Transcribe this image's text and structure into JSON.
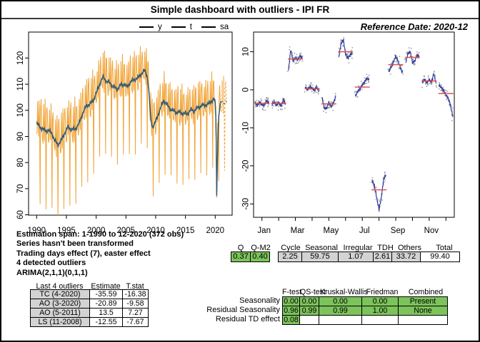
{
  "title": "Simple dashboard with outliers - IPI FR",
  "header": {
    "reference_date": "Reference Date: 2020-12",
    "legend": [
      {
        "label": "y"
      },
      {
        "label": "t"
      },
      {
        "label": "sa"
      }
    ]
  },
  "diagnostics_text": [
    "Estimation span: 1-1990 to 12-2020 (372 obs)",
    "Series hasn't been transformed",
    "Trading days effect (7), easter effect",
    "4 detected outliers",
    "ARIMA(2,1,1)(0,1,1)"
  ],
  "outliers_table": {
    "headers": [
      "Last 4 outliers",
      "Estimate",
      "T.stat"
    ],
    "rows": [
      [
        "TC (4-2020)",
        "-35.59",
        "-16.38"
      ],
      [
        "AO (3-2020)",
        "-20.89",
        "-9.58"
      ],
      [
        "AO (5-2011)",
        "13.5",
        "7.27"
      ],
      [
        "LS (11-2008)",
        "-12.55",
        "-7.67"
      ]
    ]
  },
  "q_stats": {
    "groups": [
      {
        "label": "Q",
        "value": "0.37",
        "bg": "green"
      },
      {
        "label": "Q-M2",
        "value": "0.40",
        "bg": "green"
      },
      {
        "label": "",
        "value": "",
        "bg": "gap"
      },
      {
        "label": "Cycle",
        "value": "2.25",
        "bg": "gray"
      },
      {
        "label": "Seasonal",
        "value": "59.75",
        "bg": "gray"
      },
      {
        "label": "Irregular",
        "value": "1.07",
        "bg": "gray"
      },
      {
        "label": "TDH",
        "value": "2.61",
        "bg": "gray"
      },
      {
        "label": "Others",
        "value": "33.72",
        "bg": "gray"
      },
      {
        "label": "Total",
        "value": "99.40",
        "bg": "white"
      }
    ]
  },
  "seasonality_tests": {
    "column_headers": [
      "F-test",
      "QS-test",
      "Kruskal-Wallis",
      "Friedman",
      "Combined"
    ],
    "rows": [
      {
        "label": "Seasonality",
        "cells": [
          "0.00",
          "0.00",
          "0.00",
          "0.00",
          "Present"
        ],
        "green_flags": [
          true,
          true,
          true,
          true,
          true
        ]
      },
      {
        "label": "Residual Seasonality",
        "cells": [
          "0.96",
          "0.99",
          "0.99",
          "1.00",
          "None"
        ],
        "green_flags": [
          true,
          true,
          true,
          true,
          true
        ]
      },
      {
        "label": "Residual TD effect",
        "cells": [
          "0.08",
          "",
          "",
          "",
          ""
        ],
        "green_flags": [
          true,
          false,
          false,
          false,
          false
        ]
      }
    ]
  },
  "chart_data": [
    {
      "type": "line",
      "title": "",
      "xlabel": "",
      "ylabel": "",
      "x_ticks": [
        1990,
        1995,
        2000,
        2005,
        2010,
        2015,
        2020
      ],
      "y_ticks": [
        60,
        70,
        80,
        90,
        100,
        110,
        120
      ],
      "xlim": [
        1988.6,
        2022.8
      ],
      "ylim": [
        59.9,
        130
      ],
      "legend_position": "top",
      "grid": false,
      "series_names": [
        "y",
        "t",
        "sa"
      ],
      "observations": "monthly, 1-1990 to 12-2020, 372 obs; y = raw series, t = trend, sa = seasonally adjusted",
      "trend_anchors": [
        [
          1990.0,
          95.0
        ],
        [
          1990.4,
          94.2
        ],
        [
          1991.0,
          92.8
        ],
        [
          1991.5,
          92.2
        ],
        [
          1992.0,
          92.4
        ],
        [
          1992.6,
          91.2
        ],
        [
          1993.0,
          88.8
        ],
        [
          1993.6,
          86.8
        ],
        [
          1994.2,
          88.6
        ],
        [
          1994.8,
          91.5
        ],
        [
          1995.3,
          93.6
        ],
        [
          1996.0,
          92.6
        ],
        [
          1996.6,
          93.0
        ],
        [
          1997.2,
          95.2
        ],
        [
          1997.8,
          99.0
        ],
        [
          1998.4,
          101.8
        ],
        [
          1999.0,
          102.4
        ],
        [
          1999.6,
          104.0
        ],
        [
          2000.2,
          107.5
        ],
        [
          2000.8,
          111.0
        ],
        [
          2001.2,
          112.8
        ],
        [
          2001.8,
          111.0
        ],
        [
          2002.3,
          110.6
        ],
        [
          2003.0,
          108.8
        ],
        [
          2003.6,
          108.2
        ],
        [
          2004.2,
          109.8
        ],
        [
          2004.8,
          110.0
        ],
        [
          2005.2,
          108.9
        ],
        [
          2005.8,
          110.8
        ],
        [
          2006.4,
          111.8
        ],
        [
          2007.0,
          112.3
        ],
        [
          2007.6,
          113.9
        ],
        [
          2008.2,
          115.3
        ],
        [
          2008.6,
          113.2
        ],
        [
          2008.9,
          107.5
        ],
        [
          2009.2,
          97.0
        ],
        [
          2009.5,
          93.4
        ],
        [
          2009.9,
          95.0
        ],
        [
          2010.4,
          98.0
        ],
        [
          2011.0,
          101.8
        ],
        [
          2011.4,
          103.9
        ],
        [
          2011.9,
          102.2
        ],
        [
          2012.4,
          100.7
        ],
        [
          2013.0,
          99.8
        ],
        [
          2013.6,
          99.2
        ],
        [
          2014.2,
          99.2
        ],
        [
          2014.8,
          98.6
        ],
        [
          2015.4,
          98.8
        ],
        [
          2016.0,
          100.2
        ],
        [
          2016.5,
          99.7
        ],
        [
          2017.0,
          100.8
        ],
        [
          2017.6,
          101.6
        ],
        [
          2018.2,
          102.0
        ],
        [
          2018.8,
          102.2
        ],
        [
          2019.3,
          103.3
        ],
        [
          2019.8,
          104.3
        ],
        [
          2020.1,
          102.5
        ],
        [
          2020.2,
          90.0
        ],
        [
          2020.29,
          67.2
        ],
        [
          2020.45,
          86.0
        ],
        [
          2020.6,
          97.0
        ],
        [
          2020.8,
          100.8
        ],
        [
          2020.92,
          102.5
        ]
      ],
      "seasonal_factors": [
        -3.6,
        -3.6,
        8.1,
        0.3,
        -3.7,
        10.0,
        0.7,
        -26.3,
        6.6,
        8.5,
        2.3,
        -1.0
      ],
      "forecast": {
        "start": 2021.0,
        "months": 12,
        "level": 103,
        "style": "dashed"
      }
    },
    {
      "type": "seasonal_subseries",
      "title": "",
      "months": [
        "Jan",
        "Feb",
        "Mar",
        "Apr",
        "May",
        "Jun",
        "Jul",
        "Aug",
        "Sep",
        "Oct",
        "Nov",
        "Dec"
      ],
      "x_tick_labels": [
        "Jan",
        "Mar",
        "May",
        "Jul",
        "Sep",
        "Nov"
      ],
      "y_ticks": [
        10,
        0,
        -10,
        -20,
        -30
      ],
      "ylim": [
        -34,
        15
      ],
      "month_means": [
        -3.6,
        -3.6,
        8.1,
        0.3,
        -3.7,
        10.0,
        0.7,
        -26.3,
        6.6,
        8.5,
        2.3,
        -1.0
      ],
      "month_shapes": [
        [
          0.2,
          -0.5,
          0.4,
          -0.3,
          -0.6,
          0.8,
          0.1
        ],
        [
          -0.4,
          0.5,
          -0.6,
          0.3,
          -0.8,
          1.0,
          -0.2
        ],
        [
          -3.0,
          2.5,
          -0.5,
          0.3,
          -0.3,
          0.8,
          0.2
        ],
        [
          0.4,
          -0.3,
          0.5,
          0.1,
          -0.5,
          0.4,
          -0.8
        ],
        [
          1.8,
          -1.0,
          -1.3,
          0.4,
          -0.8,
          0.2,
          2.0
        ],
        [
          -1.5,
          2.0,
          3.2,
          -0.5,
          -1.8,
          -0.8,
          -0.3
        ],
        [
          -2.4,
          -1.2,
          -0.4,
          0.5,
          1.4,
          2.3,
          1.9
        ],
        [
          2.6,
          1.0,
          -2.0,
          -5.2,
          -2.0,
          2.8,
          4.0
        ],
        [
          -1.8,
          -0.6,
          0.8,
          2.2,
          1.0,
          -0.8,
          -2.2
        ],
        [
          -1.4,
          0.9,
          1.6,
          -1.4,
          -0.9,
          0.6,
          0.2
        ],
        [
          -0.4,
          0.5,
          -0.5,
          0.4,
          -0.3,
          2.0,
          -0.8
        ],
        [
          2.2,
          1.6,
          0.8,
          -0.3,
          -1.2,
          -3.2,
          -6.0
        ]
      ]
    }
  ],
  "colors": {
    "series_y": "#F0A437",
    "series_t": "#4E7A38",
    "series_sa": "#2B5380",
    "subseries_line": "#2D3C9B",
    "subseries_mean": "#E04848",
    "subseries_points": "#9B9B9B",
    "accent_green": "#7CC35B",
    "cell_gray": "#D3D3D3",
    "border": "#000000"
  }
}
